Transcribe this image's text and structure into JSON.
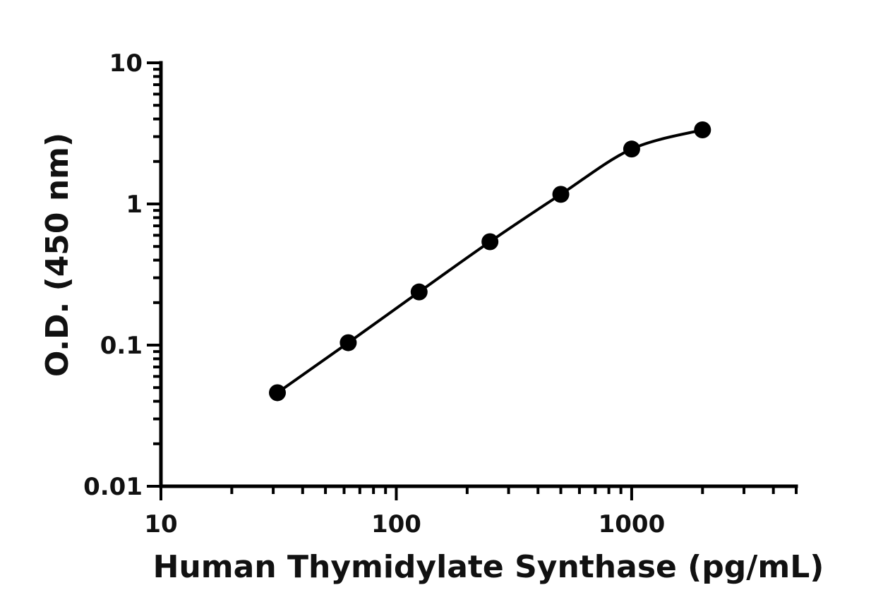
{
  "chart_data": {
    "type": "scatter",
    "xlabel": "Human Thymidylate Synthase (pg/mL)",
    "ylabel": "O.D. (450 nm)",
    "x_scale": "log",
    "y_scale": "log",
    "xlim": [
      10,
      5000
    ],
    "ylim": [
      0.01,
      10
    ],
    "x_ticks": [
      10,
      100,
      1000
    ],
    "x_tick_labels": [
      "10",
      "100",
      "1000"
    ],
    "y_ticks": [
      0.01,
      0.1,
      1,
      10
    ],
    "y_tick_labels": [
      "0.01",
      "0.1",
      "1",
      "10"
    ],
    "grid": false,
    "legend": "none",
    "series": [
      {
        "x": [
          31.25,
          62.5,
          125,
          250,
          500,
          1000,
          2000
        ],
        "y": [
          0.046,
          0.104,
          0.238,
          0.54,
          1.17,
          2.45,
          3.35
        ],
        "fit": "four-parameter logistic curve"
      }
    ]
  }
}
